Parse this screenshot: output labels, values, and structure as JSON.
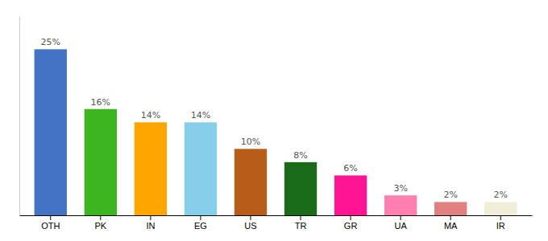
{
  "chart_data": {
    "type": "bar",
    "categories": [
      "OTH",
      "PK",
      "IN",
      "EG",
      "US",
      "TR",
      "GR",
      "UA",
      "MA",
      "IR"
    ],
    "values": [
      25,
      16,
      14,
      14,
      10,
      8,
      6,
      3,
      2,
      2
    ],
    "value_labels": [
      "25%",
      "16%",
      "14%",
      "14%",
      "10%",
      "8%",
      "6%",
      "3%",
      "2%",
      "2%"
    ],
    "colors": [
      "#4472c4",
      "#3cb521",
      "#ffa500",
      "#87ceeb",
      "#b85c1a",
      "#1a6b1a",
      "#ff1493",
      "#ff80b0",
      "#e08080",
      "#f0eed8"
    ],
    "ylim": [
      0,
      30
    ],
    "data_labels": true,
    "tick_labels": "x",
    "grid": false
  }
}
